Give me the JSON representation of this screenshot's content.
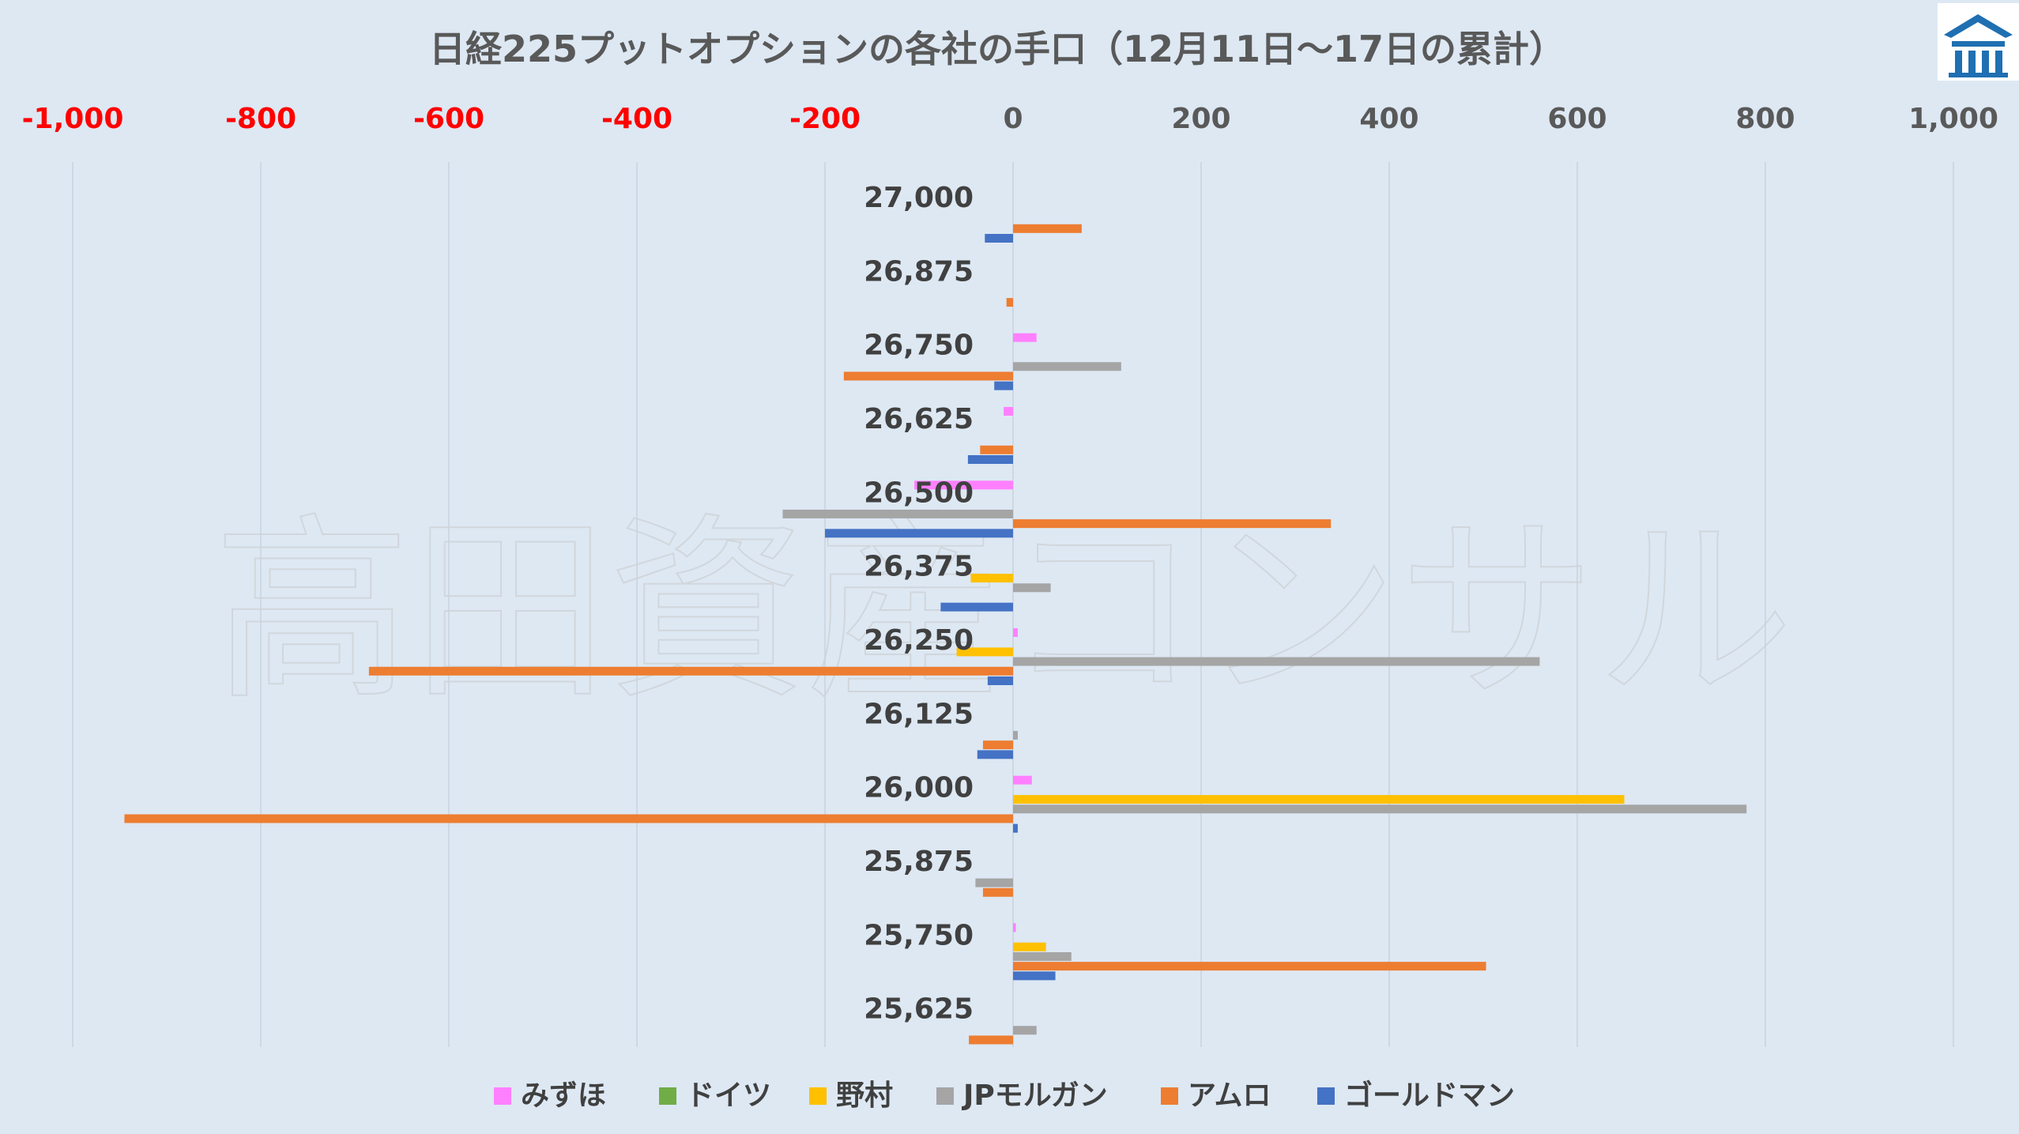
{
  "title": "日経225プットオプションの各社の手口（12月11日～17日の累計）",
  "watermark": "高田資産コンサル",
  "logo": {
    "name": "company-logo-icon",
    "color": "#1f6fb2"
  },
  "colors": {
    "background": "#dde8f3",
    "grid": "#c9d3de",
    "negative_tick": "#ff0000",
    "positive_tick": "#595959"
  },
  "chart_data": {
    "type": "bar",
    "orientation": "horizontal",
    "title": "日経225プットオプションの各社の手口（12月11日～17日の累計）",
    "xlabel": "",
    "ylabel": "",
    "xlim": [
      -1000,
      1000
    ],
    "x_ticks": [
      "-1,000",
      "-800",
      "-600",
      "-400",
      "-200",
      "0",
      "200",
      "400",
      "600",
      "800",
      "1,000"
    ],
    "x_tick_values": [
      -1000,
      -800,
      -600,
      -400,
      -200,
      0,
      200,
      400,
      600,
      800,
      1000
    ],
    "x_axis_position": "top",
    "grid": "vertical",
    "legend_position": "bottom",
    "categories": [
      "27,000",
      "26,875",
      "26,750",
      "26,625",
      "26,500",
      "26,375",
      "26,250",
      "26,125",
      "26,000",
      "25,875",
      "25,750",
      "25,625"
    ],
    "series": [
      {
        "name": "みずほ",
        "color": "#ff80ff",
        "values": [
          0,
          0,
          25,
          -10,
          -105,
          0,
          5,
          0,
          20,
          0,
          3,
          0
        ]
      },
      {
        "name": "ドイツ",
        "color": "#70ad47",
        "values": [
          0,
          0,
          0,
          0,
          0,
          0,
          0,
          0,
          0,
          0,
          0,
          0
        ]
      },
      {
        "name": "野村",
        "color": "#ffc000",
        "values": [
          0,
          0,
          0,
          0,
          0,
          -45,
          -60,
          0,
          650,
          0,
          35,
          0
        ]
      },
      {
        "name": "JPモルガン",
        "color": "#a5a5a5",
        "values": [
          0,
          0,
          115,
          0,
          -245,
          40,
          560,
          5,
          780,
          -40,
          62,
          25
        ]
      },
      {
        "name": "アムロ",
        "color": "#ed7d31",
        "values": [
          73,
          -7,
          -180,
          -35,
          338,
          0,
          -685,
          -32,
          -945,
          -32,
          503,
          -47
        ]
      },
      {
        "name": "ゴールドマン",
        "color": "#4472c4",
        "values": [
          -30,
          0,
          -20,
          -48,
          -200,
          -77,
          -27,
          -38,
          5,
          0,
          45,
          0
        ]
      }
    ]
  }
}
